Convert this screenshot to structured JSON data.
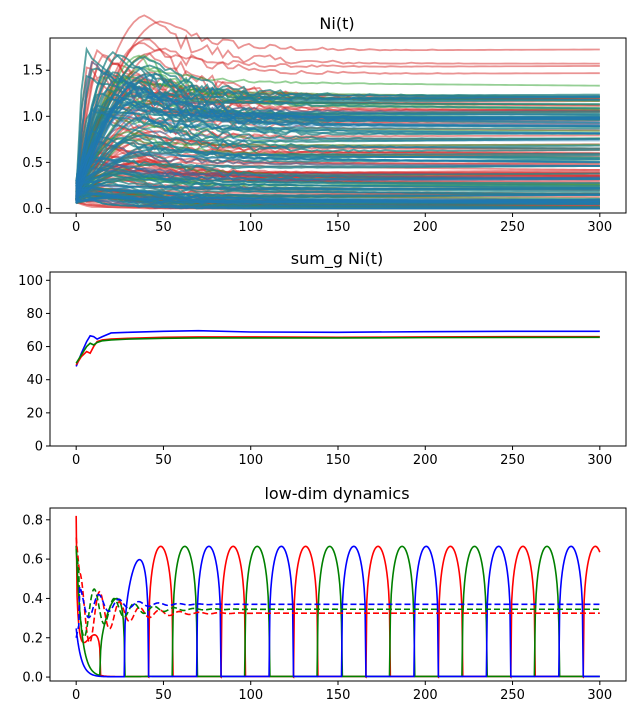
{
  "figure": {
    "background": "#ffffff"
  },
  "chart_data": [
    {
      "type": "line",
      "title": "Ni(t)",
      "xlim": [
        -15,
        315
      ],
      "ylim": [
        -0.05,
        1.85
      ],
      "xticks": [
        0,
        50,
        100,
        150,
        200,
        250,
        300
      ],
      "yticks": [
        0.0,
        0.5,
        1.0,
        1.5
      ],
      "ytick_labels": [
        "0.0",
        "0.5",
        "1.0",
        "1.5"
      ],
      "description_series": "many overlapping trajectories, alpha 0.5",
      "series_groups": [
        {
          "name": "",
          "color": "#d62728",
          "count": 90
        },
        {
          "name": "",
          "color": "#2ca02c",
          "count": 90
        },
        {
          "name": "",
          "color": "#1f77b4",
          "count": 90
        }
      ],
      "highlighted_levels": [
        1.7,
        1.55,
        1.5,
        1.45,
        1.38,
        1.25,
        1.18,
        1.12,
        1.05,
        0.95,
        0.85,
        0.75
      ]
    },
    {
      "type": "line",
      "title": "sum_g Ni(t)",
      "xlim": [
        -15,
        315
      ],
      "ylim": [
        0,
        105
      ],
      "xticks": [
        0,
        50,
        100,
        150,
        200,
        250,
        300
      ],
      "yticks": [
        0,
        20,
        40,
        60,
        80,
        100
      ],
      "series": [
        {
          "name": "",
          "color": "#0000ff",
          "x": [
            0,
            3,
            6,
            8,
            10,
            12,
            15,
            20,
            30,
            50,
            70,
            100,
            150,
            200,
            250,
            300
          ],
          "y": [
            48,
            56,
            63,
            66.5,
            66,
            64.5,
            66,
            68.2,
            68.6,
            69.2,
            69.6,
            68.8,
            68.6,
            69.0,
            69.2,
            69.2
          ]
        },
        {
          "name": "",
          "color": "#ff0000",
          "x": [
            0,
            3,
            6,
            8,
            10,
            12,
            15,
            20,
            30,
            50,
            70,
            100,
            150,
            200,
            250,
            300
          ],
          "y": [
            49,
            54,
            57,
            56,
            60,
            63,
            64,
            64.5,
            65,
            65.6,
            65.8,
            65.8,
            65.6,
            65.8,
            66.0,
            66.0
          ]
        },
        {
          "name": "",
          "color": "#008000",
          "x": [
            0,
            3,
            6,
            8,
            10,
            12,
            15,
            20,
            30,
            50,
            70,
            100,
            150,
            200,
            250,
            300
          ],
          "y": [
            50,
            55,
            60,
            62,
            61,
            62.5,
            63.5,
            64,
            64.5,
            65,
            65.2,
            65.2,
            65.2,
            65.4,
            65.5,
            65.6
          ]
        }
      ]
    },
    {
      "type": "line",
      "title": "low-dim dynamics",
      "xlim": [
        -15,
        315
      ],
      "ylim": [
        -0.02,
        0.86
      ],
      "xticks": [
        0,
        50,
        100,
        150,
        200,
        250,
        300
      ],
      "yticks": [
        0.0,
        0.2,
        0.4,
        0.6,
        0.8
      ],
      "ytick_labels": [
        "0.0",
        "0.2",
        "0.4",
        "0.6",
        "0.8"
      ],
      "oscillation": {
        "period": 41.5,
        "amplitude_max": 0.665,
        "amplitude_min": 0.003
      },
      "series": [
        {
          "name": "",
          "color": "#ff0000",
          "style": "solid",
          "phase": 0,
          "initial": 0.82
        },
        {
          "name": "",
          "color": "#008000",
          "style": "solid",
          "phase": 13.8,
          "initial": 0.67
        },
        {
          "name": "",
          "color": "#0000ff",
          "style": "solid",
          "phase": 27.6,
          "initial": 0.25
        },
        {
          "name": "",
          "color": "#ff0000",
          "style": "dashed",
          "level": 0.325,
          "initial": 0.71
        },
        {
          "name": "",
          "color": "#008000",
          "style": "dashed",
          "level": 0.345,
          "initial": 0.65
        },
        {
          "name": "",
          "color": "#0000ff",
          "style": "dashed",
          "level": 0.37,
          "initial": 0.2
        }
      ]
    }
  ]
}
